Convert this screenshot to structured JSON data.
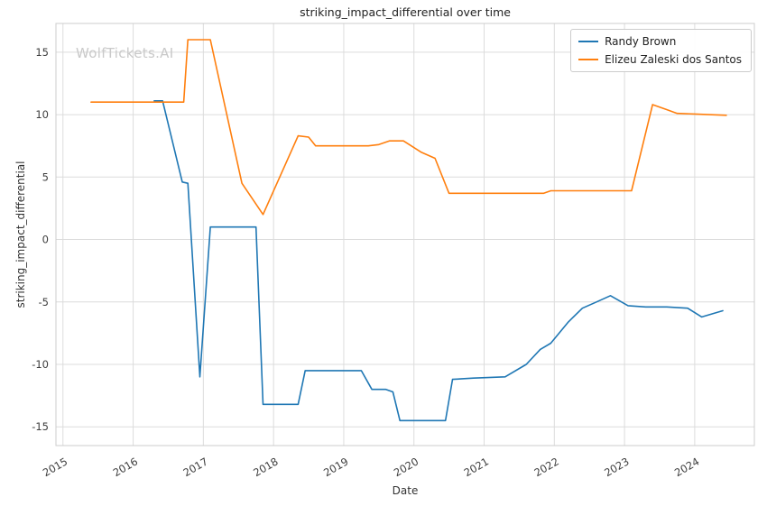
{
  "watermark": "WolfTickets.AI",
  "chart_data": {
    "type": "line",
    "title": "striking_impact_differential over time",
    "xlabel": "Date",
    "ylabel": "striking_impact_differential",
    "xlim": [
      2014.9,
      2024.85
    ],
    "ylim": [
      -16.5,
      17.3
    ],
    "xticks": [
      2015,
      2016,
      2017,
      2018,
      2019,
      2020,
      2021,
      2022,
      2023,
      2024
    ],
    "yticks": [
      -15,
      -10,
      -5,
      0,
      5,
      10,
      15
    ],
    "grid": true,
    "legend_position": "upper right",
    "style": {
      "grid_color": "#dcdcdc",
      "spine_color": "#cccccc",
      "tick_color": "#3d3d3d",
      "background": "#ffffff"
    },
    "series": [
      {
        "name": "Randy Brown",
        "color": "#1f77b4",
        "x": [
          2016.3,
          2016.42,
          2016.7,
          2016.78,
          2016.95,
          2017.1,
          2017.75,
          2017.85,
          2018.35,
          2018.45,
          2019.25,
          2019.4,
          2019.6,
          2019.7,
          2019.8,
          2020.45,
          2020.55,
          2020.85,
          2021.3,
          2021.6,
          2021.8,
          2021.95,
          2022.2,
          2022.4,
          2022.6,
          2022.8,
          2023.05,
          2023.3,
          2023.6,
          2023.9,
          2024.1,
          2024.4
        ],
        "y": [
          11.1,
          11.1,
          4.6,
          4.5,
          -11.0,
          1.0,
          1.0,
          -13.2,
          -13.2,
          -10.5,
          -10.5,
          -12.0,
          -12.0,
          -12.2,
          -14.5,
          -14.5,
          -11.2,
          -11.1,
          -11.0,
          -10.0,
          -8.8,
          -8.3,
          -6.6,
          -5.5,
          -5.0,
          -4.5,
          -5.3,
          -5.4,
          -5.4,
          -5.5,
          -6.2,
          -5.7
        ]
      },
      {
        "name": "Elizeu Zaleski dos Santos",
        "color": "#ff7f0e",
        "x": [
          2015.4,
          2016.3,
          2016.72,
          2016.78,
          2017.1,
          2017.55,
          2017.85,
          2018.35,
          2018.5,
          2018.6,
          2019.35,
          2019.5,
          2019.65,
          2019.85,
          2020.1,
          2020.3,
          2020.5,
          2021.85,
          2021.95,
          2023.1,
          2023.4,
          2023.6,
          2023.75,
          2024.0,
          2024.45
        ],
        "y": [
          11.0,
          11.0,
          11.0,
          16.0,
          16.0,
          4.5,
          2.0,
          8.3,
          8.2,
          7.5,
          7.5,
          7.6,
          7.9,
          7.9,
          7.0,
          6.5,
          3.7,
          3.7,
          3.9,
          3.9,
          10.8,
          10.4,
          10.1,
          10.05,
          9.95
        ]
      }
    ]
  }
}
